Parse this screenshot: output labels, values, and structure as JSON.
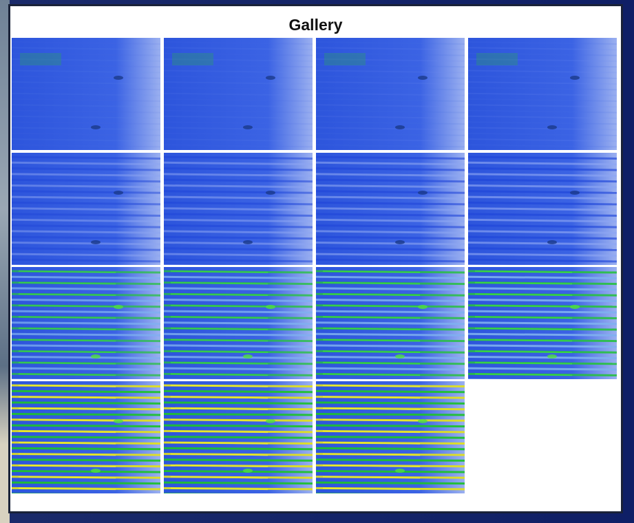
{
  "window": {
    "title": "Gallery"
  }
}
